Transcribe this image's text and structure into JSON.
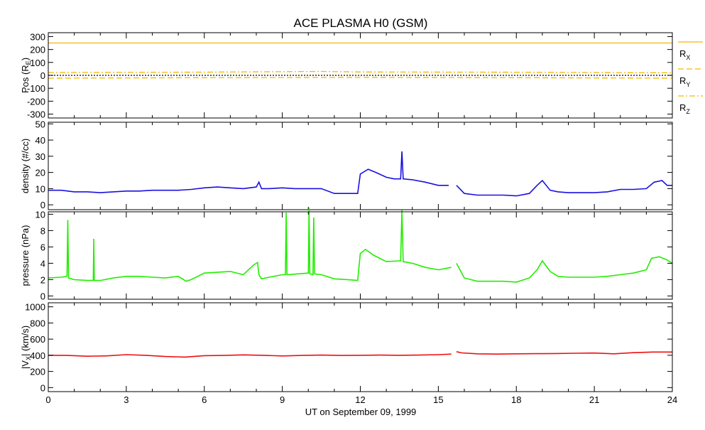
{
  "title": "ACE PLASMA H0 (GSM)",
  "xlabel": "UT on September 09, 1999",
  "colors": {
    "position": "#f5b800",
    "zero": "#000000",
    "density": "#1a10e0",
    "pressure": "#22ee00",
    "velocity": "#ee1010"
  },
  "chart_data": [
    {
      "type": "line",
      "id": "position",
      "ylabel": "Pos (R",
      "ylabel_sub": "E",
      "ylabel_end": ")",
      "xlim": [
        0,
        24
      ],
      "ylim": [
        -330,
        330
      ],
      "yticks": [
        -300,
        -200,
        -100,
        0,
        100,
        200,
        300
      ],
      "legend": [
        {
          "label": "R",
          "sub": "X",
          "style": "solid"
        },
        {
          "label": "R",
          "sub": "Y",
          "style": "dashed"
        },
        {
          "label": "R",
          "sub": "Z",
          "style": "dashdot"
        }
      ],
      "legend_placement": "right",
      "series": [
        {
          "name": "RX",
          "style": "solid",
          "x": [
            0,
            24
          ],
          "values": [
            250,
            250
          ]
        },
        {
          "name": "RY",
          "style": "dashed",
          "x": [
            0,
            6,
            12,
            18,
            24
          ],
          "values": [
            -22,
            -18,
            -16,
            -18,
            -22
          ]
        },
        {
          "name": "RZ",
          "style": "dashdot",
          "x": [
            0,
            6,
            10.5,
            12,
            18,
            24
          ],
          "values": [
            22,
            25,
            30,
            26,
            24,
            20
          ]
        },
        {
          "name": "zero",
          "style": "dotted",
          "x": [
            0,
            24
          ],
          "values": [
            0,
            0
          ]
        }
      ]
    },
    {
      "type": "line",
      "id": "density",
      "ylabel": "density (#/cc)",
      "xlim": [
        0,
        24
      ],
      "ylim": [
        -3,
        51
      ],
      "yticks": [
        0,
        10,
        20,
        30,
        40,
        50
      ],
      "series": [
        {
          "name": "density",
          "segments": [
            {
              "x": [
                0,
                0.5,
                1,
                1.5,
                2,
                2.5,
                3,
                3.5,
                4,
                4.5,
                5,
                5.5,
                6,
                6.5,
                7,
                7.5,
                8,
                8.1,
                8.2,
                8.5,
                9,
                9.5,
                10,
                10.5,
                11,
                11.5,
                11.9,
                12,
                12.3,
                12.6,
                13,
                13.3,
                13.55,
                13.6,
                13.65,
                14,
                14.5,
                15,
                15.4
              ],
              "values": [
                9,
                9,
                8,
                8,
                7.5,
                8,
                8.5,
                8.5,
                9,
                9,
                9,
                9.5,
                10.5,
                11,
                10.5,
                10,
                11,
                14,
                10,
                10,
                10.5,
                10,
                10,
                10,
                7,
                7,
                7,
                19,
                22,
                20,
                17,
                16,
                16,
                33,
                16,
                15.5,
                14,
                12,
                12
              ]
            },
            {
              "x": [
                15.7,
                16,
                16.5,
                17,
                17.5,
                18,
                18.5,
                18.8,
                19,
                19.3,
                19.6,
                20,
                20.5,
                21,
                21.5,
                22,
                22.5,
                23,
                23.3,
                23.6,
                23.8,
                24
              ],
              "values": [
                12,
                7,
                6,
                6,
                6,
                5.5,
                7,
                12,
                15,
                9,
                8,
                7.5,
                7.5,
                7.5,
                8,
                9.5,
                9.5,
                10,
                14,
                15,
                12,
                12
              ]
            }
          ]
        }
      ]
    },
    {
      "type": "line",
      "id": "pressure",
      "ylabel": "pressure (nPa)",
      "xlim": [
        0,
        24
      ],
      "ylim": [
        -0.4,
        10.3
      ],
      "yticks": [
        0,
        2,
        4,
        6,
        8,
        10
      ],
      "series": [
        {
          "name": "pressure",
          "segments": [
            {
              "x": [
                0,
                0.5,
                0.72,
                0.75,
                0.78,
                1,
                1.5,
                1.73,
                1.75,
                1.77,
                2,
                2.5,
                3,
                3.5,
                4,
                4.5,
                5,
                5.3,
                5.5,
                6,
                6.5,
                7,
                7.5,
                7.9,
                8.05,
                8.1,
                8.2,
                8.5,
                9,
                9.12,
                9.15,
                9.18,
                10,
                10.03,
                10.06,
                10.09,
                10.18,
                10.21,
                10.24,
                10.5,
                11,
                11.5,
                11.9,
                12,
                12.2,
                12.5,
                13,
                13.5,
                13.55,
                13.6,
                13.65,
                14,
                14.5,
                15,
                15.5
              ],
              "values": [
                2.2,
                2.3,
                2.4,
                9.3,
                2.2,
                2,
                1.9,
                1.9,
                7,
                1.9,
                1.9,
                2.2,
                2.4,
                2.4,
                2.3,
                2.2,
                2.4,
                1.8,
                2,
                2.8,
                2.9,
                3,
                2.6,
                3.8,
                4.1,
                2.6,
                2.1,
                2.3,
                2.6,
                2.6,
                10.2,
                2.6,
                2.8,
                10.8,
                2.7,
                2.7,
                2.6,
                9.6,
                2.7,
                2.6,
                2.1,
                2,
                1.9,
                5.2,
                5.7,
                5,
                4.2,
                4.3,
                4.3,
                10.5,
                4.2,
                4,
                3.5,
                3.2,
                3.5
              ]
            },
            {
              "x": [
                15.7,
                16,
                16.5,
                17,
                17.5,
                18,
                18.5,
                18.8,
                19,
                19.3,
                19.6,
                20,
                20.5,
                21,
                21.5,
                22,
                22.5,
                23,
                23.2,
                23.5,
                23.8,
                24
              ],
              "values": [
                4,
                2.2,
                1.8,
                1.8,
                1.8,
                1.7,
                2.2,
                3.2,
                4.3,
                3,
                2.4,
                2.3,
                2.3,
                2.3,
                2.4,
                2.6,
                2.8,
                3.2,
                4.6,
                4.8,
                4.4,
                4
              ]
            }
          ]
        }
      ]
    },
    {
      "type": "line",
      "id": "velocity",
      "ylabel": "|V",
      "ylabel_sub": "X",
      "ylabel_end": "| (km/s)",
      "xlim": [
        0,
        24
      ],
      "ylim": [
        -50,
        1050
      ],
      "yticks": [
        0,
        200,
        400,
        600,
        800,
        1000
      ],
      "series": [
        {
          "name": "Vx",
          "segments": [
            {
              "x": [
                0,
                0.75,
                1.5,
                2.25,
                3,
                3.75,
                4.5,
                5.25,
                6,
                6.75,
                7.5,
                8.25,
                9,
                9.75,
                10.5,
                11.25,
                12,
                12.75,
                13.5,
                14.25,
                15,
                15.5
              ],
              "values": [
                400,
                398,
                388,
                393,
                408,
                400,
                385,
                378,
                395,
                398,
                405,
                400,
                392,
                398,
                402,
                398,
                400,
                402,
                400,
                402,
                408,
                415
              ]
            },
            {
              "x": [
                15.7,
                15.9,
                16.5,
                17.25,
                18,
                18.75,
                19.5,
                20.25,
                21,
                21.75,
                22.5,
                23.25,
                24
              ],
              "values": [
                445,
                430,
                418,
                415,
                418,
                420,
                422,
                425,
                428,
                418,
                432,
                440,
                440
              ]
            }
          ]
        }
      ]
    }
  ],
  "xaxis": {
    "ticks": [
      0,
      3,
      6,
      9,
      12,
      15,
      18,
      21,
      24
    ],
    "minor_step": 1
  }
}
